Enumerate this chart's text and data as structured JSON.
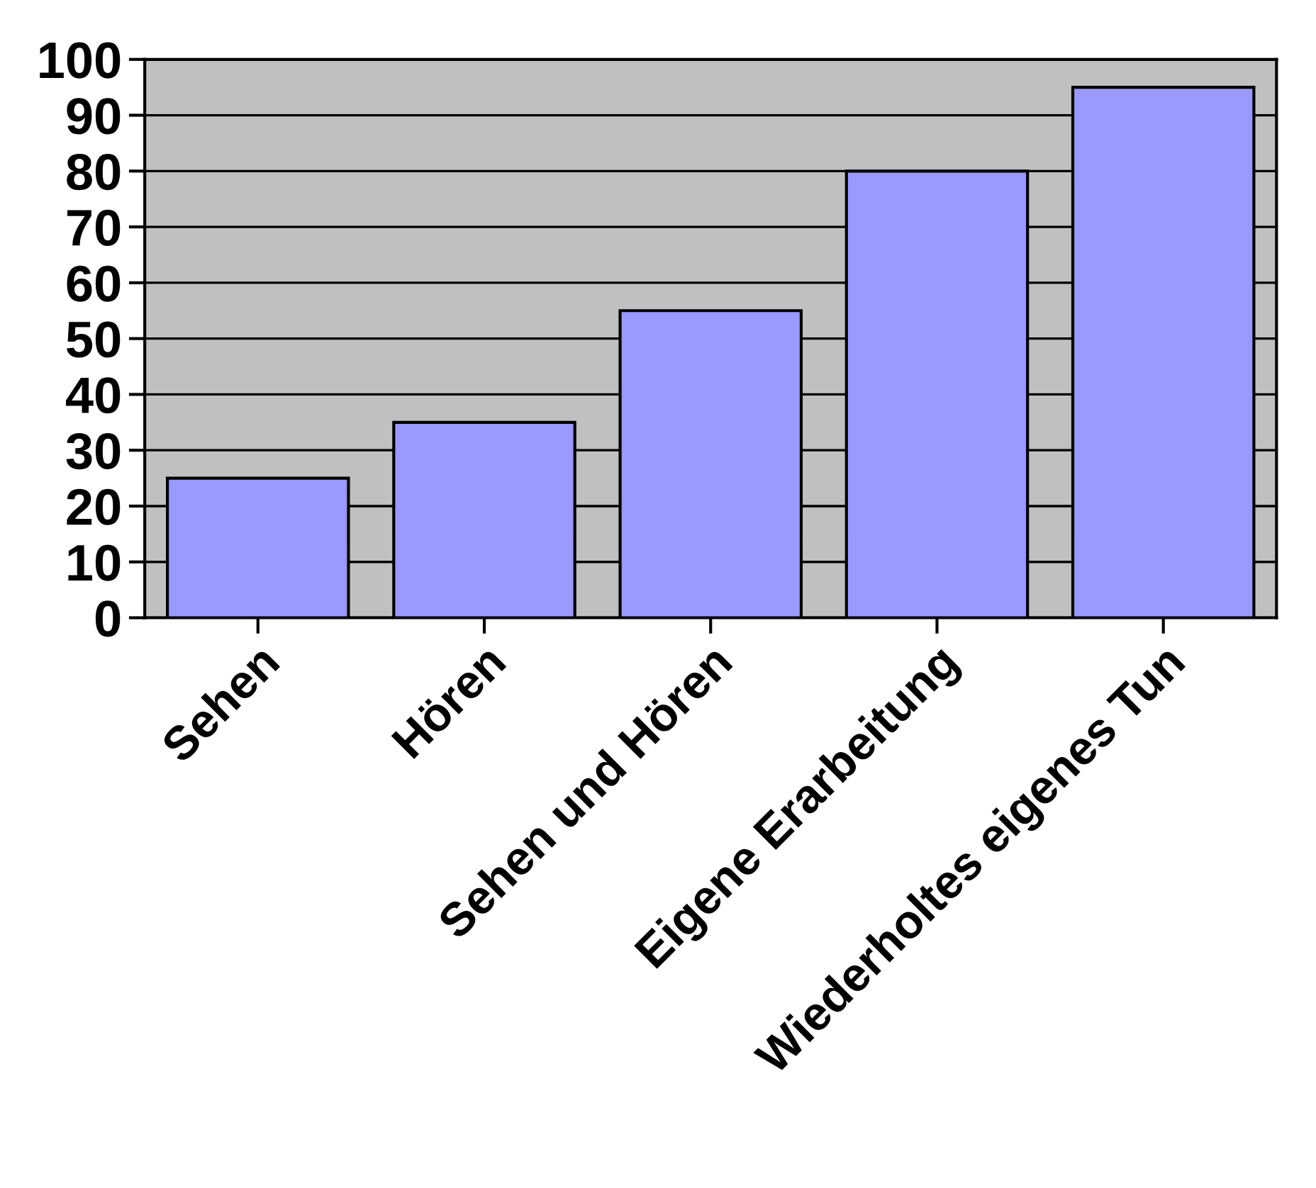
{
  "chart_data": {
    "type": "bar",
    "categories": [
      "Sehen",
      "Hören",
      "Sehen und Hören",
      "Eigene Erarbeitung",
      "Wiederholtes eigenes Tun"
    ],
    "values": [
      25,
      35,
      55,
      80,
      95
    ],
    "color": "#9999ff",
    "ylim": [
      0,
      100
    ],
    "yticks": [
      0,
      10,
      20,
      30,
      40,
      50,
      60,
      70,
      80,
      90,
      100
    ],
    "grid": "y"
  }
}
